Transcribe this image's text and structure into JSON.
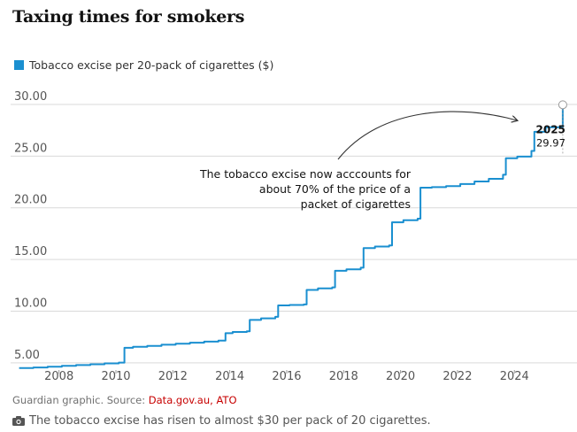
{
  "title": "Taxing times for smokers",
  "legend_label": "Tobacco excise per 20-pack of cigarettes ($)",
  "source_prefix": "Guardian graphic. Source: ",
  "source_links": "Data.gov.au, ATO",
  "caption": "The tobacco excise has risen to almost $30 per pack of 20 cigarettes.",
  "colors": {
    "line": "#1a8fd0",
    "grid": "#d9d9d9",
    "text": "#121212",
    "source_link": "#c70000"
  },
  "icons": {
    "caption": "camera-icon"
  },
  "chart_data": {
    "type": "line",
    "title": "Taxing times for smokers",
    "xlabel": "",
    "ylabel": "",
    "xlim": [
      2006.3,
      2026.2
    ],
    "ylim": [
      4.3,
      30.0
    ],
    "x_ticks": [
      2008,
      2010,
      2012,
      2014,
      2016,
      2018,
      2020,
      2022,
      2024
    ],
    "y_ticks": [
      5,
      10,
      15,
      20,
      25,
      30
    ],
    "y_tick_labels": [
      "5.00",
      "10.00",
      "15.00",
      "20.00",
      "25.00",
      "30.00"
    ],
    "grid": "horizontal",
    "legend": "top-left",
    "series": [
      {
        "name": "Tobacco excise per 20-pack of cigarettes ($)",
        "points": [
          [
            2006.6,
            4.5
          ],
          [
            2007.1,
            4.55
          ],
          [
            2007.6,
            4.62
          ],
          [
            2008.1,
            4.7
          ],
          [
            2008.6,
            4.78
          ],
          [
            2009.1,
            4.86
          ],
          [
            2009.6,
            4.94
          ],
          [
            2010.1,
            5.02
          ],
          [
            2010.3,
            6.45
          ],
          [
            2010.6,
            6.55
          ],
          [
            2011.1,
            6.64
          ],
          [
            2011.6,
            6.75
          ],
          [
            2012.1,
            6.85
          ],
          [
            2012.6,
            6.95
          ],
          [
            2013.1,
            7.05
          ],
          [
            2013.6,
            7.15
          ],
          [
            2013.85,
            7.86
          ],
          [
            2014.1,
            7.98
          ],
          [
            2014.6,
            8.05
          ],
          [
            2014.7,
            9.15
          ],
          [
            2015.1,
            9.3
          ],
          [
            2015.6,
            9.45
          ],
          [
            2015.7,
            10.55
          ],
          [
            2016.1,
            10.6
          ],
          [
            2016.6,
            10.65
          ],
          [
            2016.7,
            12.05
          ],
          [
            2017.1,
            12.2
          ],
          [
            2017.6,
            12.3
          ],
          [
            2017.7,
            13.9
          ],
          [
            2018.1,
            14.05
          ],
          [
            2018.6,
            14.2
          ],
          [
            2018.7,
            16.1
          ],
          [
            2019.1,
            16.25
          ],
          [
            2019.6,
            16.35
          ],
          [
            2019.7,
            18.6
          ],
          [
            2020.1,
            18.8
          ],
          [
            2020.6,
            18.95
          ],
          [
            2020.7,
            21.95
          ],
          [
            2021.1,
            22.0
          ],
          [
            2021.6,
            22.1
          ],
          [
            2022.1,
            22.3
          ],
          [
            2022.6,
            22.55
          ],
          [
            2023.1,
            22.8
          ],
          [
            2023.6,
            23.2
          ],
          [
            2023.7,
            24.8
          ],
          [
            2024.1,
            24.95
          ],
          [
            2024.6,
            25.5
          ],
          [
            2024.7,
            27.35
          ],
          [
            2025.1,
            27.8
          ],
          [
            2025.7,
            29.97
          ]
        ]
      }
    ],
    "annotations": [
      {
        "text": "The tobacco excise now acccounts for about 70% of the price of a packet of cigarettes"
      },
      {
        "label": "2025",
        "value": "29.97"
      }
    ]
  }
}
